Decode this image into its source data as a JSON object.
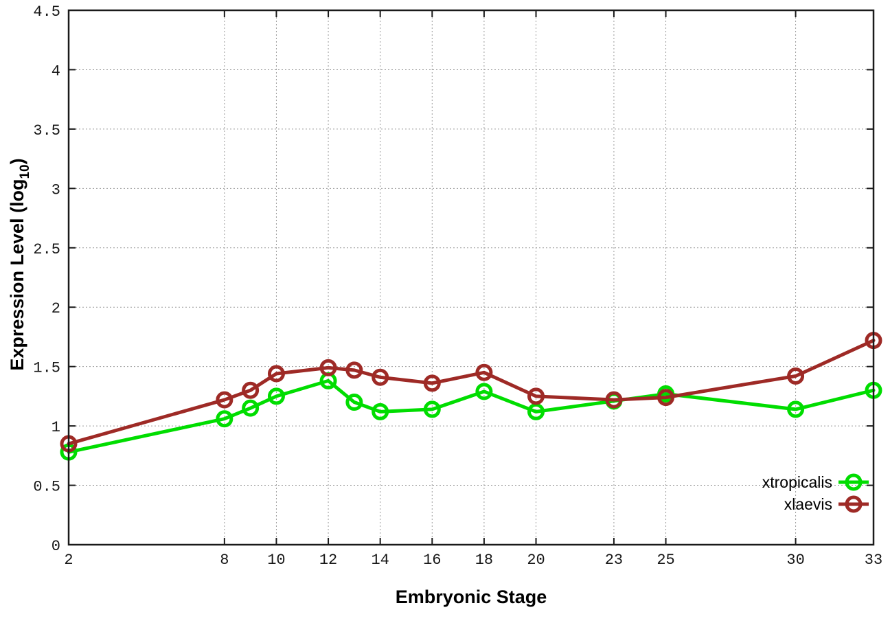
{
  "chart_data": {
    "type": "line",
    "title": "",
    "xlabel": "Embryonic Stage",
    "ylabel": {
      "pre": "Expression Level (log",
      "sub": "10",
      "post": ")"
    },
    "x": [
      2,
      8,
      9,
      10,
      12,
      13,
      14,
      16,
      18,
      20,
      23,
      25,
      30,
      33
    ],
    "series": [
      {
        "name": "xtropicalis",
        "color": "#00dd00",
        "values": [
          0.78,
          1.06,
          1.15,
          1.25,
          1.38,
          1.2,
          1.12,
          1.14,
          1.29,
          1.12,
          1.21,
          1.27,
          1.14,
          1.3
        ]
      },
      {
        "name": "xlaevis",
        "color": "#9e2a26",
        "values": [
          0.85,
          1.22,
          1.3,
          1.44,
          1.49,
          1.47,
          1.41,
          1.36,
          1.45,
          1.25,
          1.22,
          1.24,
          1.42,
          1.72
        ]
      }
    ],
    "xlim": [
      2,
      33
    ],
    "ylim": [
      0,
      4.5
    ],
    "xticks": [
      2,
      8,
      10,
      12,
      14,
      16,
      18,
      20,
      23,
      25,
      30,
      33
    ],
    "yticks": [
      0,
      0.5,
      1,
      1.5,
      2,
      2.5,
      3,
      3.5,
      4,
      4.5
    ],
    "grid": true,
    "legend_position": "bottom-right"
  }
}
